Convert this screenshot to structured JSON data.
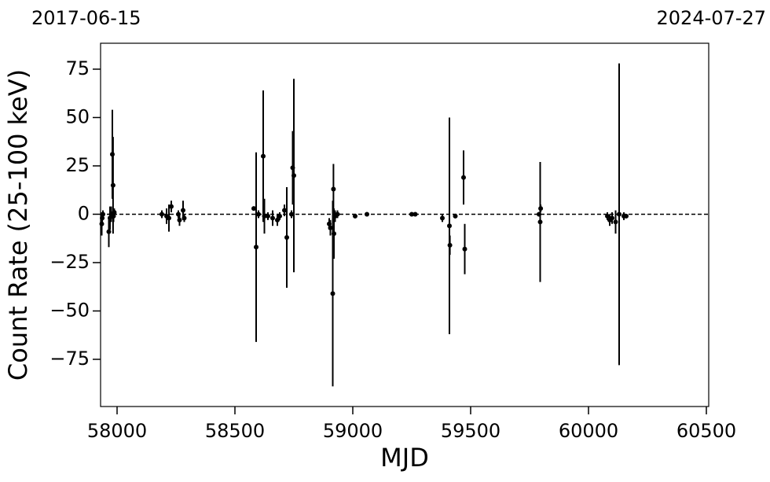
{
  "chart_data": {
    "type": "errorbar",
    "x_label": "MJD",
    "y_label": "Count Rate (25-100 keV)",
    "top_left_label": "2017-06-15",
    "top_right_label": "2024-07-27",
    "color": "#000000",
    "hline": 0,
    "xlim": [
      57930,
      60510
    ],
    "ylim": [
      -99.4,
      88.4
    ],
    "xticks": [
      58000,
      58500,
      59000,
      59500,
      60000,
      60500
    ],
    "yticks": [
      {
        "value": -75,
        "label": "−75"
      },
      {
        "value": -50,
        "label": "−50"
      },
      {
        "value": -25,
        "label": "−25"
      },
      0,
      25,
      50,
      75
    ],
    "x": [
      57935,
      57937,
      57940,
      57965,
      57970,
      57975,
      57980,
      57983,
      57985,
      57988,
      58190,
      58210,
      58220,
      58230,
      58260,
      58265,
      58280,
      58285,
      58580,
      58590,
      58600,
      58620,
      58625,
      58640,
      58660,
      58680,
      58690,
      58710,
      58720,
      58740,
      58745,
      58750,
      58900,
      58905,
      58915,
      58918,
      58920,
      58925,
      58935,
      59010,
      59060,
      59250,
      59265,
      59380,
      59410,
      59412,
      59435,
      59470,
      59475,
      59790,
      59795,
      59797,
      60080,
      60090,
      60100,
      60115,
      60130,
      60150,
      60160
    ],
    "values": [
      -5,
      -2,
      0,
      -9,
      -2,
      0,
      31,
      15,
      -1,
      1,
      0,
      -1,
      -2,
      4,
      0,
      -3,
      2,
      -2,
      3,
      -17,
      0,
      30,
      -1,
      -1,
      -2,
      -3,
      -1,
      2,
      -12,
      0,
      24,
      20,
      -5,
      -7,
      -41,
      13,
      -10,
      -1,
      0,
      -1,
      0,
      0,
      0,
      -2,
      -6,
      -16,
      -1,
      19,
      -18,
      0,
      -4,
      3,
      -1,
      -3,
      -2,
      -4,
      0,
      -1,
      -1
    ],
    "errors": [
      6,
      3,
      2,
      8,
      6,
      4,
      23,
      25,
      3,
      2,
      2,
      4,
      7,
      3,
      2,
      3,
      5,
      2,
      1,
      49,
      2,
      34,
      9,
      2,
      4,
      3,
      2,
      3,
      26,
      2,
      19,
      50,
      3,
      4,
      48,
      13,
      13,
      3,
      2,
      1,
      1,
      1,
      1,
      2,
      56,
      5,
      1,
      14,
      13,
      1,
      31,
      2,
      2,
      3,
      3,
      6,
      78,
      2,
      1
    ]
  }
}
